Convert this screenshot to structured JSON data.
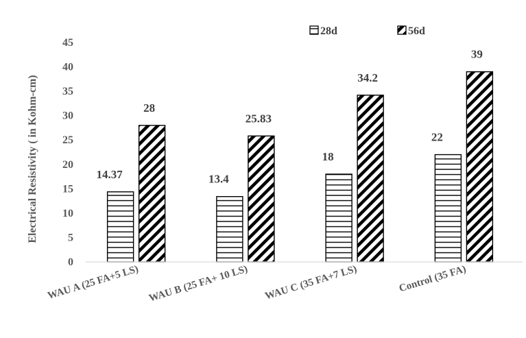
{
  "chart_data": {
    "type": "bar",
    "categories": [
      "WAU A (25 FA+5 LS)",
      "WAU B (25 FA+ 10 LS)",
      "WAU C (35 FA+7 LS)",
      "Control (35 FA)"
    ],
    "series": [
      {
        "name": "28d",
        "values": [
          14.37,
          13.4,
          18,
          22
        ],
        "labels": [
          "14.37",
          "13.4",
          "18",
          "22"
        ],
        "pattern": "horizontal-lines"
      },
      {
        "name": "56d",
        "values": [
          28,
          25.83,
          34.2,
          39
        ],
        "labels": [
          "28",
          "25.83",
          "34.2",
          "39"
        ],
        "pattern": "diagonal-stripes"
      }
    ],
    "ylabel": "Electrical Resistivity ( in Kohm-cm)",
    "xlabel": "",
    "ylim": [
      0,
      45
    ],
    "yticks": [
      0,
      5,
      10,
      15,
      20,
      25,
      30,
      35,
      40,
      45
    ],
    "grid": false,
    "legend_position": "top-right"
  },
  "colors": {
    "bar_stroke": "#000000",
    "axis": "#d9d9d9",
    "text": "#595959"
  }
}
